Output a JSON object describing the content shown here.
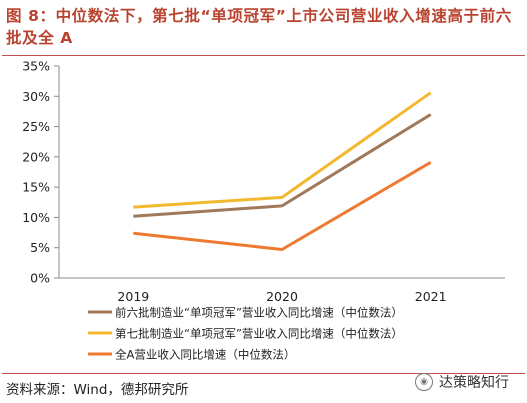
{
  "title": "图 8：中位数法下，第七批“单项冠军”上市公司营业收入增速高于前六批及全 A",
  "source": "资料来源：Wind，德邦研究所",
  "watermark": "达策略知行",
  "chart_data": {
    "type": "line",
    "x": [
      "2019",
      "2020",
      "2021"
    ],
    "ylim": [
      0,
      35
    ],
    "yticks": [
      "0%",
      "5%",
      "10%",
      "15%",
      "20%",
      "25%",
      "30%",
      "35%"
    ],
    "series": [
      {
        "name": "前六批制造业“单项冠军”营业收入同比增速（中位数法）",
        "color": "#a0795b",
        "values": [
          10.2,
          11.9,
          27.0
        ]
      },
      {
        "name": "第七批制造业“单项冠军”营业收入同比增速（中位数法）",
        "color": "#f2b92f",
        "values": [
          11.7,
          13.3,
          30.6
        ]
      },
      {
        "name": "全A营业收入同比增速（中位数法）",
        "color": "#ee7a32",
        "values": [
          7.4,
          4.7,
          19.1
        ]
      }
    ]
  }
}
